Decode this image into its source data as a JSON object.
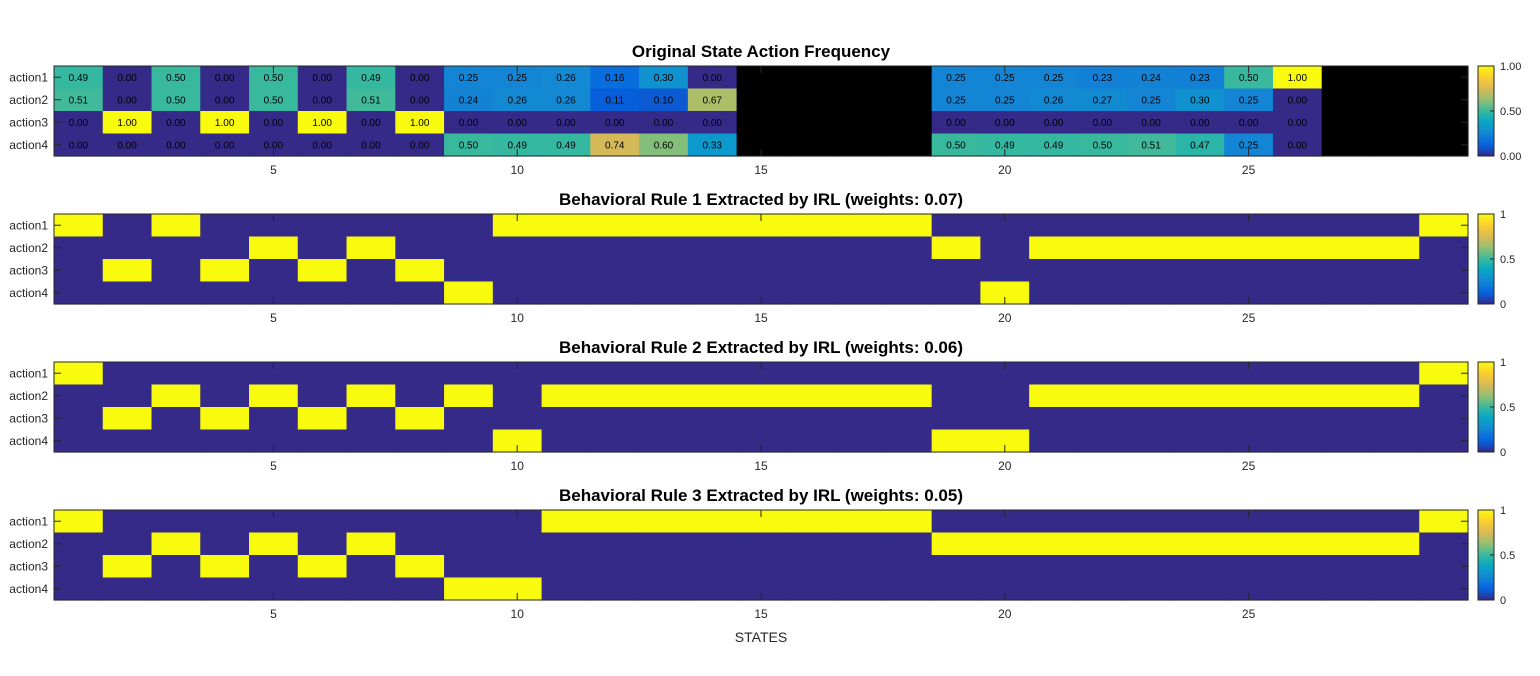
{
  "figure": {
    "xlabel": "STATES"
  },
  "chart_data": [
    {
      "type": "heatmap",
      "title": "Original State Action Frequency",
      "rows": [
        "action1",
        "action2",
        "action3",
        "action4"
      ],
      "x": [
        1,
        2,
        3,
        4,
        5,
        6,
        7,
        8,
        9,
        10,
        11,
        12,
        13,
        14,
        15,
        16,
        17,
        18,
        19,
        20,
        21,
        22,
        23,
        24,
        25,
        26,
        27,
        28,
        29
      ],
      "xticks": [
        5,
        10,
        15,
        20,
        25
      ],
      "colorbar": {
        "ticks": [
          "0.00",
          "0.50",
          "1.00"
        ],
        "range": [
          0,
          1
        ]
      },
      "missing_color": "#000000",
      "cell_labels": true,
      "values": [
        [
          0.49,
          0.0,
          0.5,
          0.0,
          0.5,
          0.0,
          0.49,
          0.0,
          0.25,
          0.25,
          0.26,
          0.16,
          0.3,
          0.0,
          null,
          null,
          null,
          null,
          0.25,
          0.25,
          0.25,
          0.23,
          0.24,
          0.23,
          0.5,
          1.0,
          null,
          null,
          null
        ],
        [
          0.51,
          0.0,
          0.5,
          0.0,
          0.5,
          0.0,
          0.51,
          0.0,
          0.24,
          0.26,
          0.26,
          0.11,
          0.1,
          0.67,
          null,
          null,
          null,
          null,
          0.25,
          0.25,
          0.26,
          0.27,
          0.25,
          0.3,
          0.25,
          0.0,
          null,
          null,
          null
        ],
        [
          0.0,
          1.0,
          0.0,
          1.0,
          0.0,
          1.0,
          0.0,
          1.0,
          0.0,
          0.0,
          0.0,
          0.0,
          0.0,
          0.0,
          null,
          null,
          null,
          null,
          0.0,
          0.0,
          0.0,
          0.0,
          0.0,
          0.0,
          0.0,
          0.0,
          null,
          null,
          null
        ],
        [
          0.0,
          0.0,
          0.0,
          0.0,
          0.0,
          0.0,
          0.0,
          0.0,
          0.5,
          0.49,
          0.49,
          0.74,
          0.6,
          0.33,
          null,
          null,
          null,
          null,
          0.5,
          0.49,
          0.49,
          0.5,
          0.51,
          0.47,
          0.25,
          0.0,
          null,
          null,
          null
        ]
      ]
    },
    {
      "type": "heatmap",
      "title": "Behavioral Rule 1 Extracted by IRL (weights: 0.07)",
      "rows": [
        "action1",
        "action2",
        "action3",
        "action4"
      ],
      "x": [
        1,
        2,
        3,
        4,
        5,
        6,
        7,
        8,
        9,
        10,
        11,
        12,
        13,
        14,
        15,
        16,
        17,
        18,
        19,
        20,
        21,
        22,
        23,
        24,
        25,
        26,
        27,
        28,
        29
      ],
      "xticks": [
        5,
        10,
        15,
        20,
        25
      ],
      "colorbar": {
        "ticks": [
          "0",
          "0.5",
          "1"
        ],
        "range": [
          0,
          1
        ]
      },
      "cell_labels": false,
      "values": [
        [
          1,
          0,
          1,
          0,
          0,
          0,
          0,
          0,
          0,
          1,
          1,
          1,
          1,
          1,
          1,
          1,
          1,
          1,
          0,
          0,
          0,
          0,
          0,
          0,
          0,
          0,
          0,
          0,
          1
        ],
        [
          0,
          0,
          0,
          0,
          1,
          0,
          1,
          0,
          0,
          0,
          0,
          0,
          0,
          0,
          0,
          0,
          0,
          0,
          1,
          0,
          1,
          1,
          1,
          1,
          1,
          1,
          1,
          1,
          0
        ],
        [
          0,
          1,
          0,
          1,
          0,
          1,
          0,
          1,
          0,
          0,
          0,
          0,
          0,
          0,
          0,
          0,
          0,
          0,
          0,
          0,
          0,
          0,
          0,
          0,
          0,
          0,
          0,
          0,
          0
        ],
        [
          0,
          0,
          0,
          0,
          0,
          0,
          0,
          0,
          1,
          0,
          0,
          0,
          0,
          0,
          0,
          0,
          0,
          0,
          0,
          1,
          0,
          0,
          0,
          0,
          0,
          0,
          0,
          0,
          0
        ]
      ]
    },
    {
      "type": "heatmap",
      "title": "Behavioral Rule 2 Extracted by IRL (weights: 0.06)",
      "rows": [
        "action1",
        "action2",
        "action3",
        "action4"
      ],
      "x": [
        1,
        2,
        3,
        4,
        5,
        6,
        7,
        8,
        9,
        10,
        11,
        12,
        13,
        14,
        15,
        16,
        17,
        18,
        19,
        20,
        21,
        22,
        23,
        24,
        25,
        26,
        27,
        28,
        29
      ],
      "xticks": [
        5,
        10,
        15,
        20,
        25
      ],
      "colorbar": {
        "ticks": [
          "0",
          "0.5",
          "1"
        ],
        "range": [
          0,
          1
        ]
      },
      "cell_labels": false,
      "values": [
        [
          1,
          0,
          0,
          0,
          0,
          0,
          0,
          0,
          0,
          0,
          0,
          0,
          0,
          0,
          0,
          0,
          0,
          0,
          0,
          0,
          0,
          0,
          0,
          0,
          0,
          0,
          0,
          0,
          1
        ],
        [
          0,
          0,
          1,
          0,
          1,
          0,
          1,
          0,
          1,
          0,
          1,
          1,
          1,
          1,
          1,
          1,
          1,
          1,
          0,
          0,
          1,
          1,
          1,
          1,
          1,
          1,
          1,
          1,
          0
        ],
        [
          0,
          1,
          0,
          1,
          0,
          1,
          0,
          1,
          0,
          0,
          0,
          0,
          0,
          0,
          0,
          0,
          0,
          0,
          0,
          0,
          0,
          0,
          0,
          0,
          0,
          0,
          0,
          0,
          0
        ],
        [
          0,
          0,
          0,
          0,
          0,
          0,
          0,
          0,
          0,
          1,
          0,
          0,
          0,
          0,
          0,
          0,
          0,
          0,
          1,
          1,
          0,
          0,
          0,
          0,
          0,
          0,
          0,
          0,
          0
        ]
      ]
    },
    {
      "type": "heatmap",
      "title": "Behavioral Rule 3 Extracted by IRL (weights: 0.05)",
      "rows": [
        "action1",
        "action2",
        "action3",
        "action4"
      ],
      "x": [
        1,
        2,
        3,
        4,
        5,
        6,
        7,
        8,
        9,
        10,
        11,
        12,
        13,
        14,
        15,
        16,
        17,
        18,
        19,
        20,
        21,
        22,
        23,
        24,
        25,
        26,
        27,
        28,
        29
      ],
      "xticks": [
        5,
        10,
        15,
        20,
        25
      ],
      "colorbar": {
        "ticks": [
          "0",
          "0.5",
          "1"
        ],
        "range": [
          0,
          1
        ]
      },
      "cell_labels": false,
      "values": [
        [
          1,
          0,
          0,
          0,
          0,
          0,
          0,
          0,
          0,
          0,
          1,
          1,
          1,
          1,
          1,
          1,
          1,
          1,
          0,
          0,
          0,
          0,
          0,
          0,
          0,
          0,
          0,
          0,
          1
        ],
        [
          0,
          0,
          1,
          0,
          1,
          0,
          1,
          0,
          0,
          0,
          0,
          0,
          0,
          0,
          0,
          0,
          0,
          0,
          1,
          1,
          1,
          1,
          1,
          1,
          1,
          1,
          1,
          1,
          0
        ],
        [
          0,
          1,
          0,
          1,
          0,
          1,
          0,
          1,
          0,
          0,
          0,
          0,
          0,
          0,
          0,
          0,
          0,
          0,
          0,
          0,
          0,
          0,
          0,
          0,
          0,
          0,
          0,
          0,
          0
        ],
        [
          0,
          0,
          0,
          0,
          0,
          0,
          0,
          0,
          1,
          1,
          0,
          0,
          0,
          0,
          0,
          0,
          0,
          0,
          0,
          0,
          0,
          0,
          0,
          0,
          0,
          0,
          0,
          0,
          0
        ]
      ]
    }
  ]
}
